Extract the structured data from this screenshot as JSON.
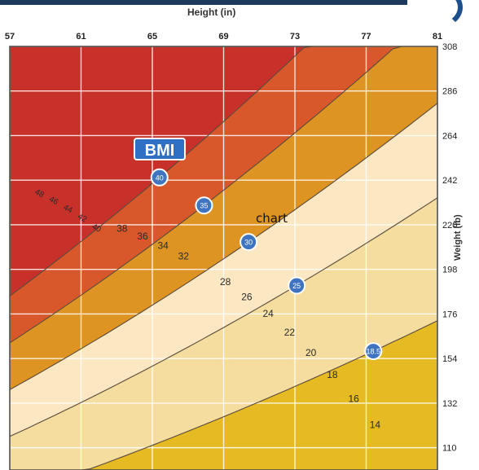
{
  "chart_data": {
    "type": "area",
    "title": "",
    "xlabel": "Height (in)",
    "ylabel": "Weight (lb)",
    "x_ticks": [
      "57",
      "61",
      "65",
      "69",
      "73",
      "77",
      "81"
    ],
    "y_ticks": [
      "308",
      "286",
      "264",
      "242",
      "220",
      "198",
      "176",
      "154",
      "132",
      "110"
    ],
    "xlim": [
      57,
      81
    ],
    "ylim": [
      99,
      308
    ],
    "bands": [
      {
        "range": "above 40",
        "color": "#c8302a"
      },
      {
        "range": "35-40",
        "color": "#d9582b"
      },
      {
        "range": "30-35",
        "color": "#de9423"
      },
      {
        "range": "25-30",
        "color": "#fbe7c2"
      },
      {
        "range": "18.5-25",
        "color": "#f4dd9e"
      },
      {
        "range": "below 18.5",
        "color": "#e6ba22"
      }
    ],
    "bmi_markers": [
      "40",
      "35",
      "30",
      "25",
      "18.5"
    ],
    "bmi_labels_upper": [
      "48",
      "46",
      "44",
      "42",
      "40"
    ],
    "bmi_labels_middle": [
      "38",
      "36",
      "34",
      "32"
    ],
    "bmi_labels_lower": [
      "28",
      "26",
      "24",
      "22",
      "20",
      "18",
      "16",
      "14"
    ],
    "badge": "BMI",
    "annotation": "chart"
  }
}
